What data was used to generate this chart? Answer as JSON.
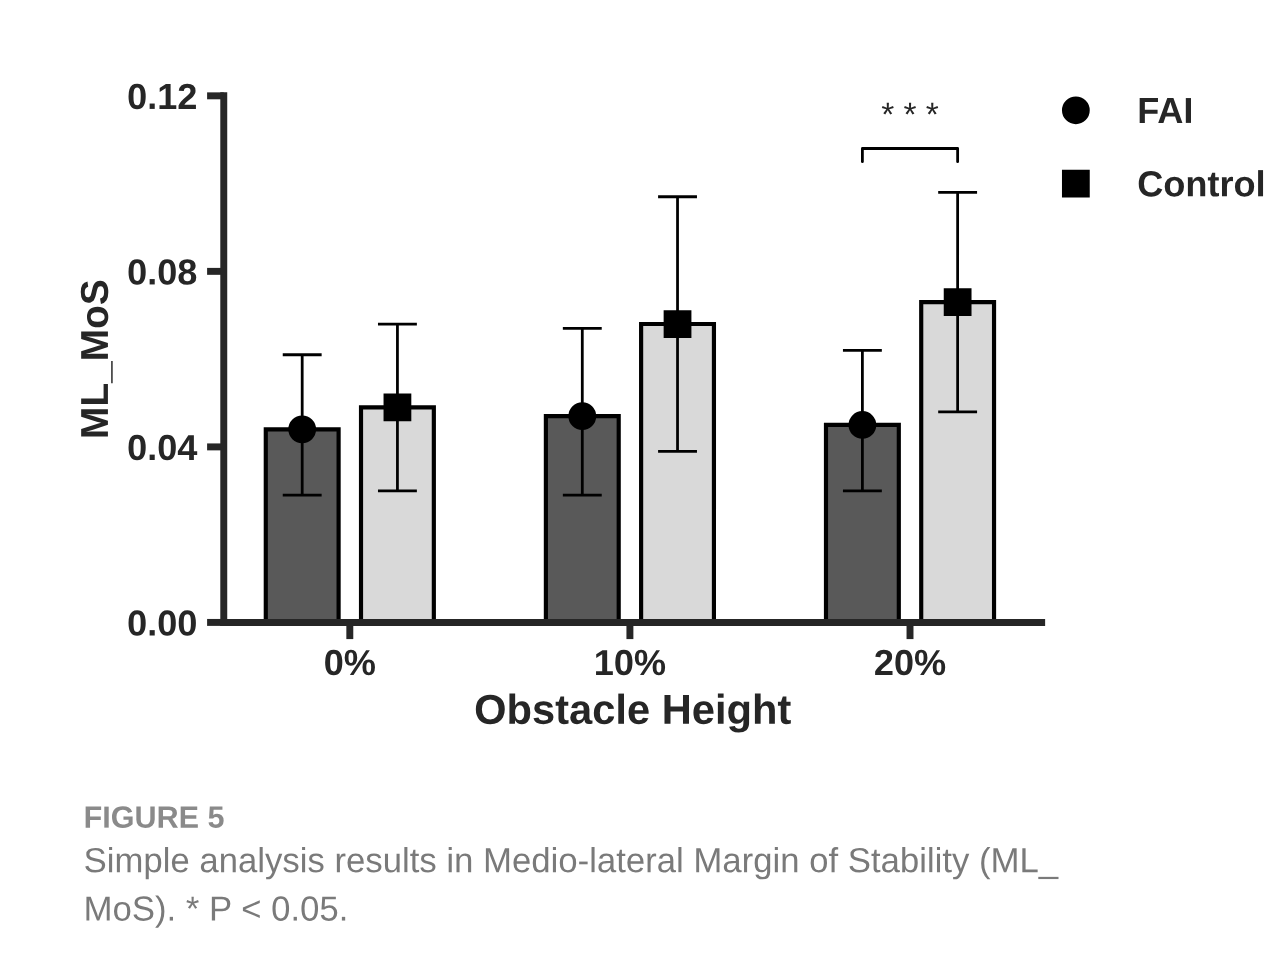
{
  "chart_data": {
    "type": "bar",
    "xlabel": "Obstacle Height",
    "ylabel": "ML_MoS",
    "categories": [
      "0%",
      "10%",
      "20%"
    ],
    "series": [
      {
        "color": "#595959",
        "values": [
          0.044,
          0.047,
          0.045
        ]
      },
      {
        "color": "#d9d9d9",
        "values": [
          0.049,
          0.068,
          0.073
        ]
      },
      {
        "type": "scatter",
        "name": "FAI",
        "color": "#000000",
        "marker": "circle",
        "x": [
          "0%",
          "10%",
          "20%"
        ],
        "values": [
          0.044,
          0.047,
          0.045
        ],
        "errors": [
          [
            0.029,
            0.061
          ],
          [
            0.029,
            0.067
          ],
          [
            0.03,
            0.062
          ]
        ]
      },
      {
        "type": "scatter",
        "name": "Control",
        "color": "#000000",
        "marker": "square",
        "x": [
          "0%",
          "10%",
          "20%"
        ],
        "values": [
          0.049,
          0.068,
          0.073
        ],
        "errors": [
          [
            0.03,
            0.068
          ],
          [
            0.039,
            0.097
          ],
          [
            0.048,
            0.098
          ]
        ]
      }
    ],
    "ylim": [
      0,
      0.12
    ],
    "yticks": [
      {
        "value": 0,
        "label": "0.00"
      },
      {
        "value": 0.04,
        "label": "0.04"
      },
      {
        "value": 0.08,
        "label": "0.08"
      },
      {
        "value": 0.12,
        "label": "0.12"
      }
    ],
    "grid": false,
    "legend": "top right",
    "annotations": [
      "* * *",
      "FIGURE 5",
      "Simple analysis results in Medio-lateral Margin of Stability (ML_",
      "MoS). * P < 0.05."
    ]
  }
}
